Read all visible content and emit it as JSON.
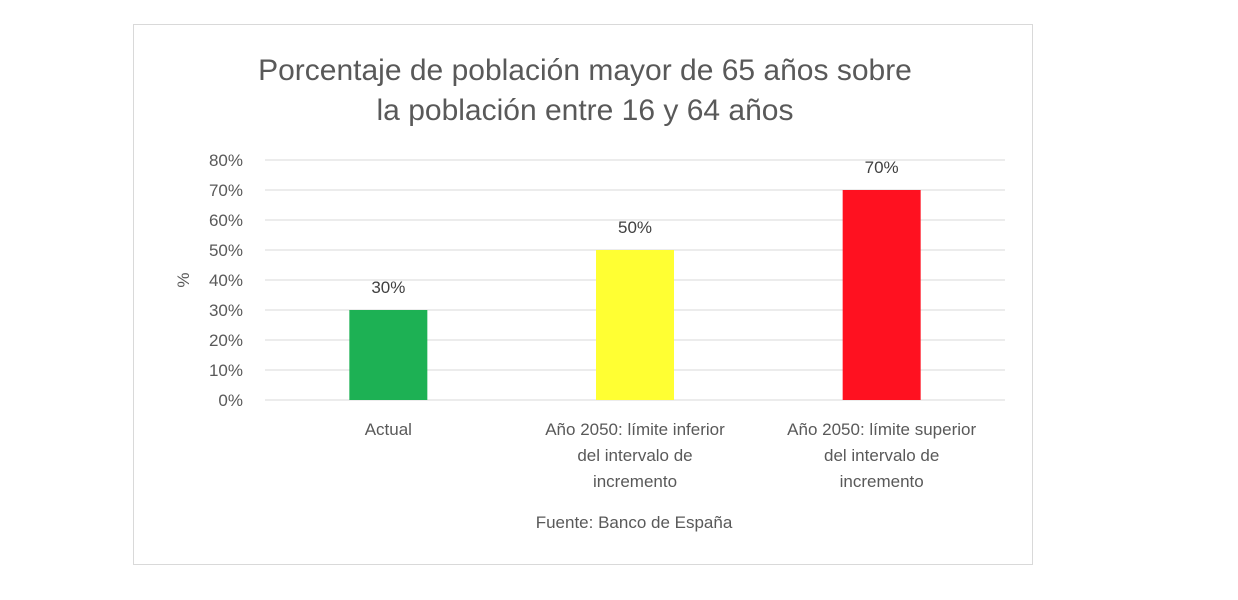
{
  "chart_data": {
    "type": "bar",
    "title": [
      "Porcentaje de población mayor de 65 años sobre",
      "la población entre 16 y 64 años"
    ],
    "categories": [
      [
        "Actual"
      ],
      [
        "Año 2050: límite inferior",
        "del intervalo de",
        "incremento"
      ],
      [
        "Año 2050: límite superior",
        "del intervalo de",
        "incremento"
      ]
    ],
    "values": [
      30,
      50,
      70
    ],
    "value_labels": [
      "30%",
      "50%",
      "70%"
    ],
    "colors": [
      "#1db154",
      "#ffff33",
      "#ff1120"
    ],
    "ylabel": "%",
    "xlabel": "Fuente: Banco de España",
    "ylim": [
      0,
      80
    ],
    "yticks": [
      0,
      10,
      20,
      30,
      40,
      50,
      60,
      70,
      80
    ],
    "ytick_labels": [
      "0%",
      "10%",
      "20%",
      "30%",
      "40%",
      "50%",
      "60%",
      "70%",
      "80%"
    ],
    "grid": true,
    "legend": "none"
  }
}
